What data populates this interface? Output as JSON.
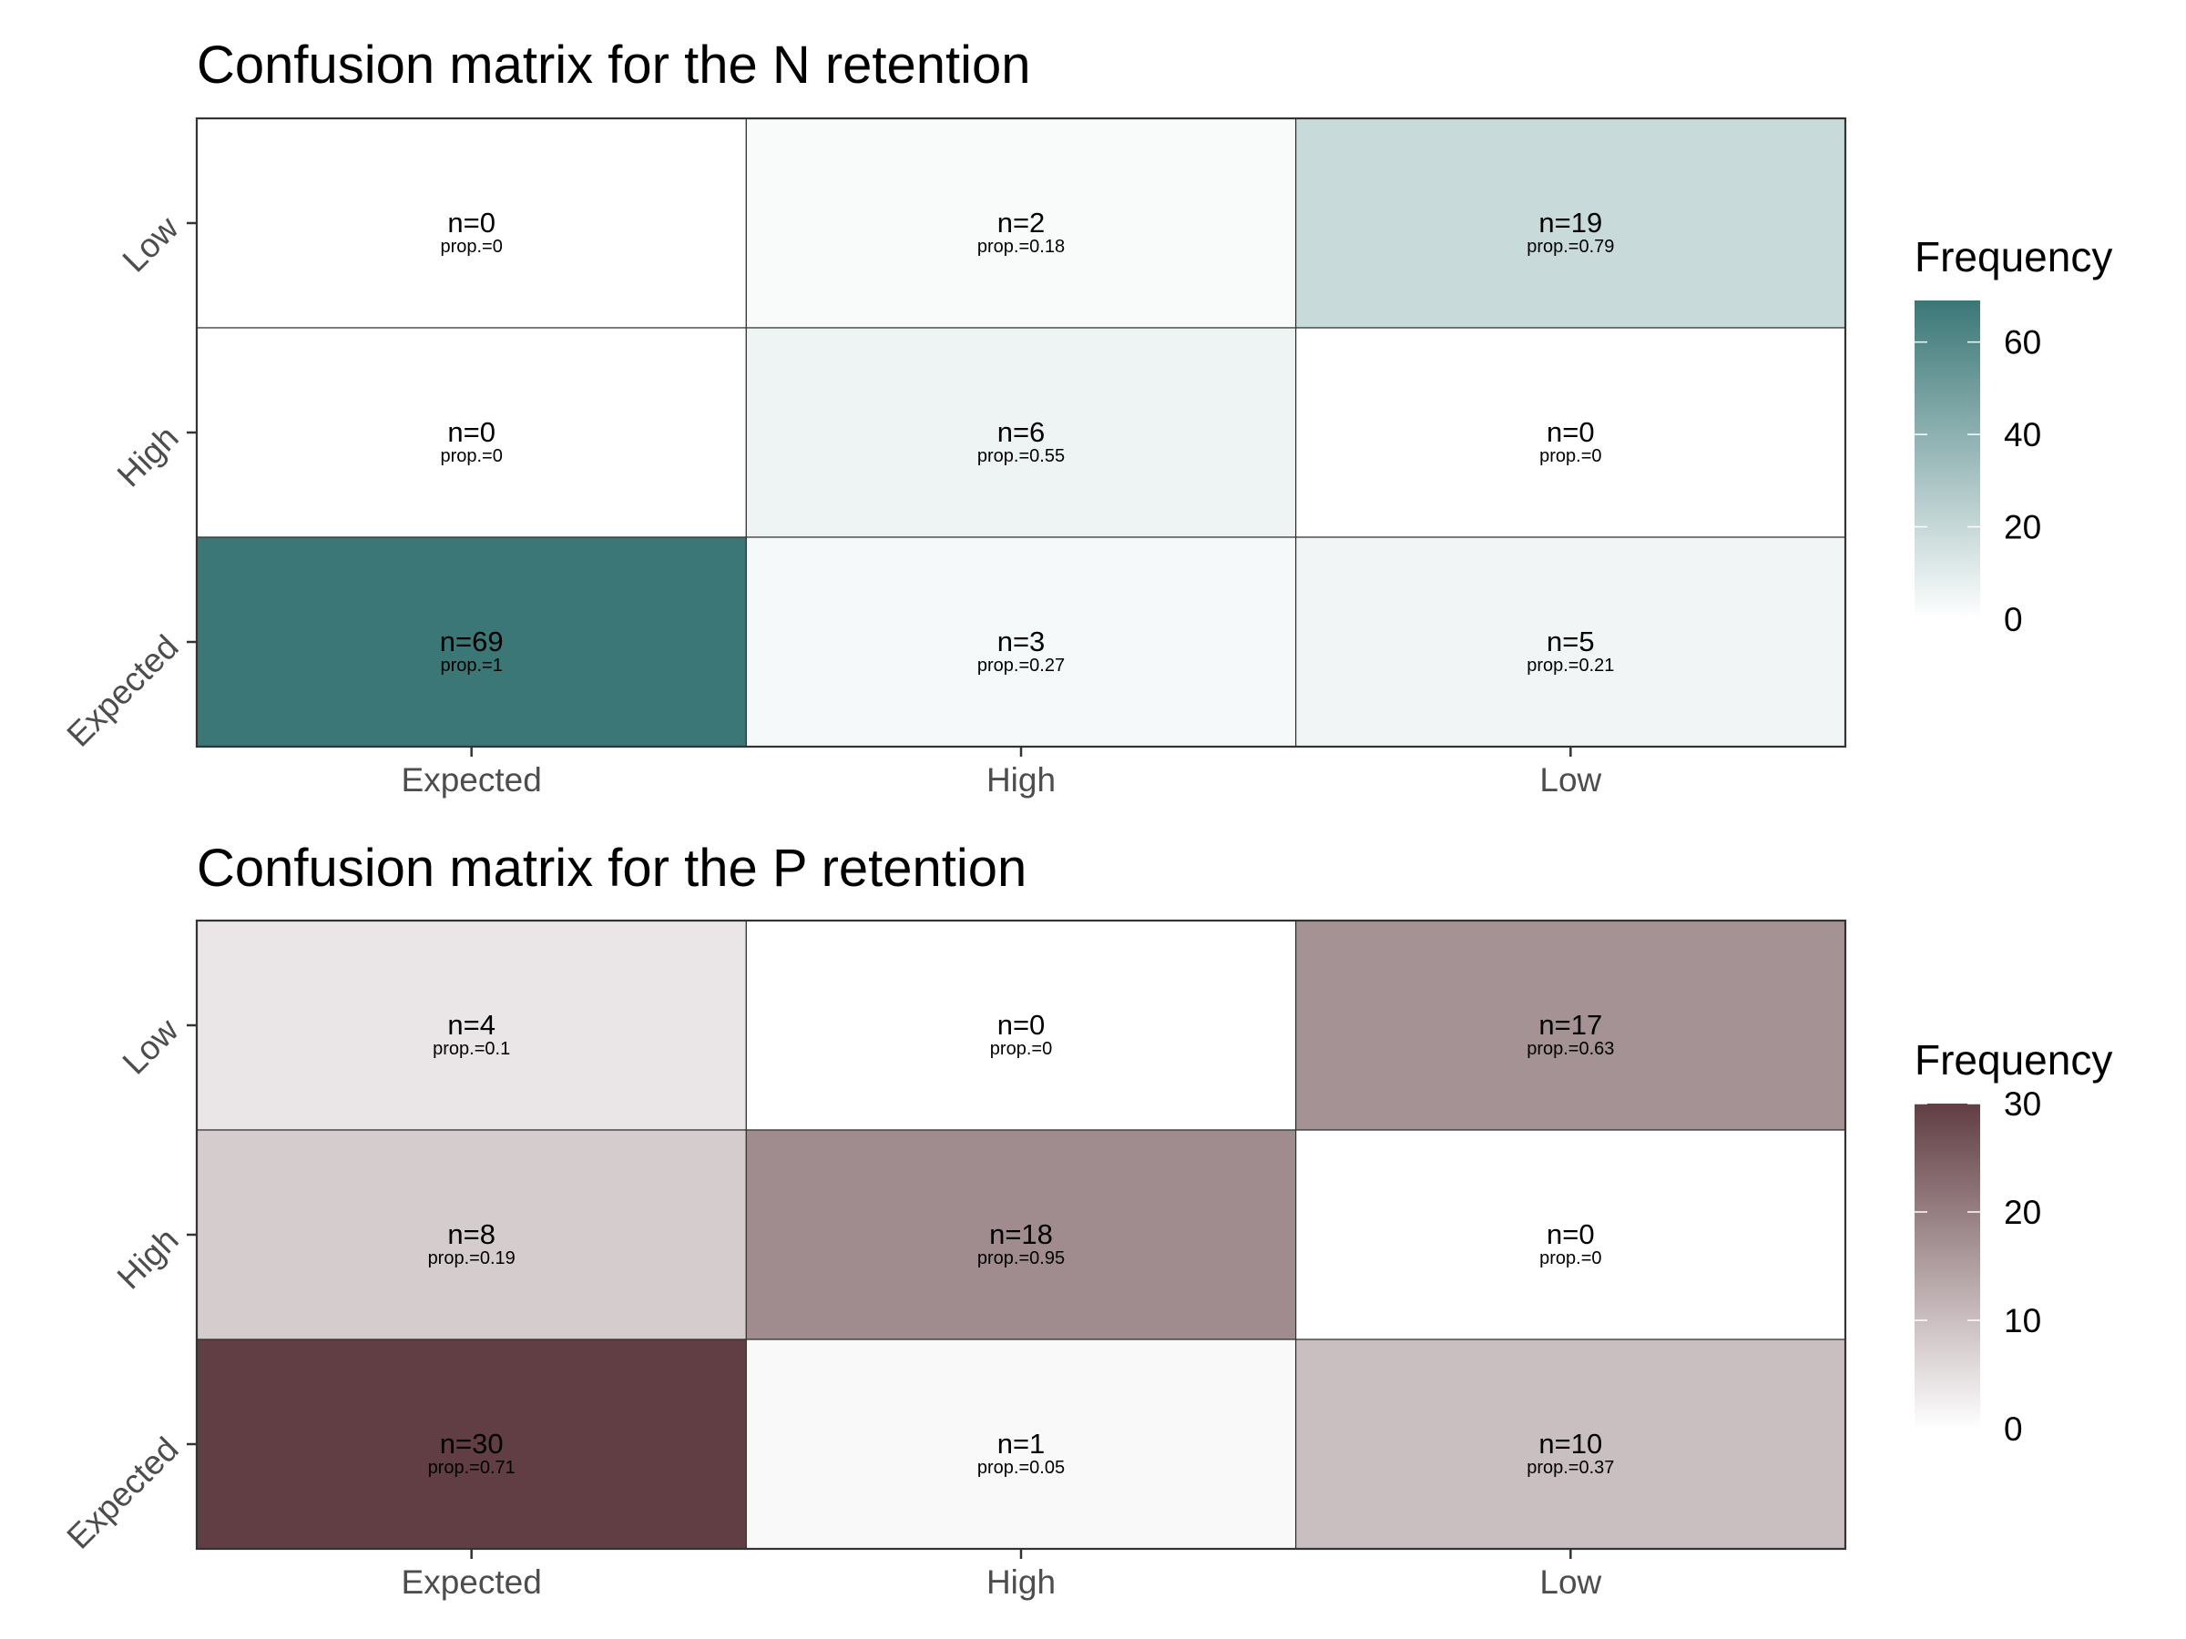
{
  "chart_data": [
    {
      "type": "heatmap",
      "title": "Confusion matrix for the N retention",
      "xlabel": "",
      "ylabel": "",
      "x_categories": [
        "Expected",
        "High",
        "Low"
      ],
      "y_categories": [
        "Expected",
        "High",
        "Low"
      ],
      "cells": [
        {
          "x": "Expected",
          "y": "Low",
          "n": 0,
          "prop": 0,
          "n_label": "n=0",
          "prop_label": "prop.=0"
        },
        {
          "x": "High",
          "y": "Low",
          "n": 2,
          "prop": 0.18,
          "n_label": "n=2",
          "prop_label": "prop.=0.18"
        },
        {
          "x": "Low",
          "y": "Low",
          "n": 19,
          "prop": 0.79,
          "n_label": "n=19",
          "prop_label": "prop.=0.79"
        },
        {
          "x": "Expected",
          "y": "High",
          "n": 0,
          "prop": 0,
          "n_label": "n=0",
          "prop_label": "prop.=0"
        },
        {
          "x": "High",
          "y": "High",
          "n": 6,
          "prop": 0.55,
          "n_label": "n=6",
          "prop_label": "prop.=0.55"
        },
        {
          "x": "Low",
          "y": "High",
          "n": 0,
          "prop": 0,
          "n_label": "n=0",
          "prop_label": "prop.=0"
        },
        {
          "x": "Expected",
          "y": "Expected",
          "n": 69,
          "prop": 1,
          "n_label": "n=69",
          "prop_label": "prop.=1"
        },
        {
          "x": "High",
          "y": "Expected",
          "n": 3,
          "prop": 0.27,
          "n_label": "n=3",
          "prop_label": "prop.=0.27"
        },
        {
          "x": "Low",
          "y": "Expected",
          "n": 5,
          "prop": 0.21,
          "n_label": "n=5",
          "prop_label": "prop.=0.21"
        }
      ],
      "legend": {
        "title": "Frequency",
        "placement": "right",
        "range": [
          0,
          69
        ],
        "ticks": [
          0,
          20,
          40,
          60
        ],
        "tick_labels": [
          "0",
          "20",
          "40",
          "60"
        ],
        "color_low": "#ffffff",
        "color_high": "#3b7777"
      }
    },
    {
      "type": "heatmap",
      "title": "Confusion matrix for the P retention",
      "xlabel": "",
      "ylabel": "",
      "x_categories": [
        "Expected",
        "High",
        "Low"
      ],
      "y_categories": [
        "Expected",
        "High",
        "Low"
      ],
      "cells": [
        {
          "x": "Expected",
          "y": "Low",
          "n": 4,
          "prop": 0.1,
          "n_label": "n=4",
          "prop_label": "prop.=0.1"
        },
        {
          "x": "High",
          "y": "Low",
          "n": 0,
          "prop": 0,
          "n_label": "n=0",
          "prop_label": "prop.=0"
        },
        {
          "x": "Low",
          "y": "Low",
          "n": 17,
          "prop": 0.63,
          "n_label": "n=17",
          "prop_label": "prop.=0.63"
        },
        {
          "x": "Expected",
          "y": "High",
          "n": 8,
          "prop": 0.19,
          "n_label": "n=8",
          "prop_label": "prop.=0.19"
        },
        {
          "x": "High",
          "y": "High",
          "n": 18,
          "prop": 0.95,
          "n_label": "n=18",
          "prop_label": "prop.=0.95"
        },
        {
          "x": "Low",
          "y": "High",
          "n": 0,
          "prop": 0,
          "n_label": "n=0",
          "prop_label": "prop.=0"
        },
        {
          "x": "Expected",
          "y": "Expected",
          "n": 30,
          "prop": 0.71,
          "n_label": "n=30",
          "prop_label": "prop.=0.71"
        },
        {
          "x": "High",
          "y": "Expected",
          "n": 1,
          "prop": 0.05,
          "n_label": "n=1",
          "prop_label": "prop.=0.05"
        },
        {
          "x": "Low",
          "y": "Expected",
          "n": 10,
          "prop": 0.37,
          "n_label": "n=10",
          "prop_label": "prop.=0.37"
        }
      ],
      "legend": {
        "title": "Frequency",
        "placement": "right",
        "range": [
          0,
          30
        ],
        "ticks": [
          0,
          10,
          20,
          30
        ],
        "tick_labels": [
          "0",
          "10",
          "20",
          "30"
        ],
        "color_low": "#ffffff",
        "color_high": "#613e43"
      }
    }
  ]
}
